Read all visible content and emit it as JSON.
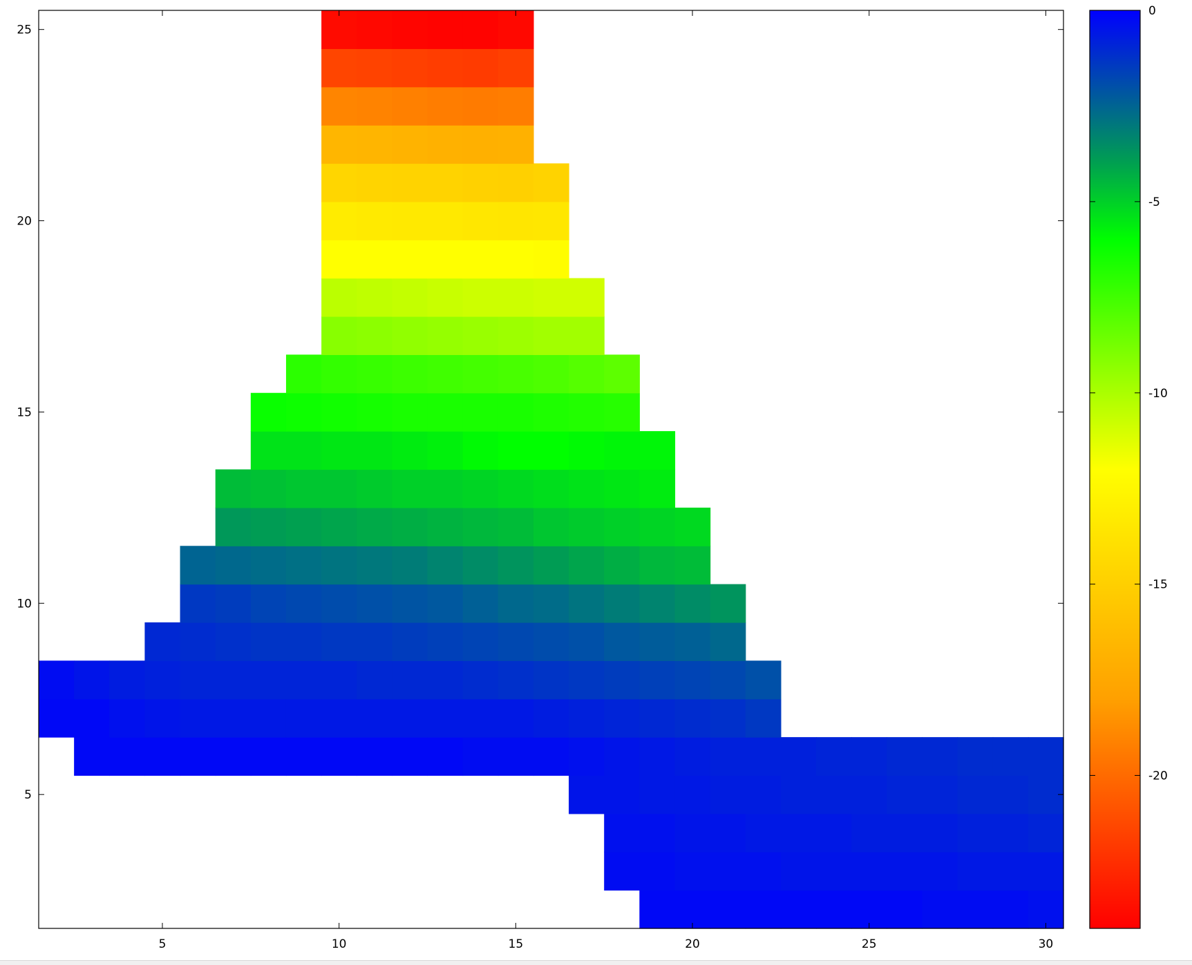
{
  "chart_data": {
    "type": "heatmap",
    "title": "",
    "xlabel": "",
    "ylabel": "",
    "xlim": [
      1.5,
      30.5
    ],
    "ylim": [
      1.5,
      25.5
    ],
    "x_ticks": [
      5,
      10,
      15,
      20,
      25,
      30
    ],
    "y_ticks": [
      5,
      10,
      15,
      20,
      25
    ],
    "colorbar": {
      "range": [
        -24,
        0
      ],
      "ticks": [
        0,
        -5,
        -10,
        -15,
        -20
      ],
      "palette": [
        {
          "value": 0,
          "color": "#0000ff"
        },
        {
          "value": -4,
          "color": "#00a050"
        },
        {
          "value": -6,
          "color": "#00ff00"
        },
        {
          "value": -12,
          "color": "#ffff00"
        },
        {
          "value": -18,
          "color": "#ffa000"
        },
        {
          "value": -24,
          "color": "#ff0000"
        }
      ]
    },
    "rows": [
      {
        "y": 2,
        "x_start": 19,
        "x_end": 30,
        "values": [
          -0.2,
          -0.2,
          -0.2,
          -0.2,
          -0.2,
          -0.2,
          -0.2,
          -0.2,
          -0.3,
          -0.3,
          -0.3,
          -0.4
        ]
      },
      {
        "y": 3,
        "x_start": 18,
        "x_end": 30,
        "values": [
          -0.3,
          -0.3,
          -0.4,
          -0.4,
          -0.4,
          -0.5,
          -0.5,
          -0.5,
          -0.5,
          -0.5,
          -0.6,
          -0.6,
          -0.6
        ]
      },
      {
        "y": 4,
        "x_start": 18,
        "x_end": 30,
        "values": [
          -0.4,
          -0.4,
          -0.5,
          -0.5,
          -0.6,
          -0.6,
          -0.6,
          -0.7,
          -0.7,
          -0.7,
          -0.8,
          -0.8,
          -0.9
        ]
      },
      {
        "y": 5,
        "x_start": 17,
        "x_end": 30,
        "values": [
          -0.5,
          -0.5,
          -0.6,
          -0.6,
          -0.7,
          -0.7,
          -0.8,
          -0.8,
          -0.8,
          -0.9,
          -0.9,
          -1.0,
          -1.0,
          -1.1
        ]
      },
      {
        "y": 6,
        "x_start": 3,
        "x_end": 30,
        "values": [
          -0.2,
          -0.2,
          -0.2,
          -0.2,
          -0.2,
          -0.2,
          -0.2,
          -0.2,
          -0.2,
          -0.2,
          -0.2,
          -0.3,
          -0.3,
          -0.3,
          -0.4,
          -0.5,
          -0.6,
          -0.7,
          -0.8,
          -0.8,
          -0.8,
          -0.9,
          -0.9,
          -1.0,
          -1.0,
          -1.1,
          -1.1,
          -1.1
        ]
      },
      {
        "y": 7,
        "x_start": 2,
        "x_end": 22,
        "values": [
          -0.2,
          -0.2,
          -0.4,
          -0.5,
          -0.6,
          -0.6,
          -0.6,
          -0.6,
          -0.6,
          -0.6,
          -0.6,
          -0.6,
          -0.6,
          -0.6,
          -0.7,
          -0.8,
          -0.9,
          -1.0,
          -1.1,
          -1.2,
          -1.4
        ]
      },
      {
        "y": 8,
        "x_start": 2,
        "x_end": 22,
        "values": [
          -0.3,
          -0.5,
          -0.7,
          -0.8,
          -0.9,
          -0.9,
          -0.9,
          -0.9,
          -0.9,
          -1.0,
          -1.0,
          -1.0,
          -1.1,
          -1.2,
          -1.3,
          -1.4,
          -1.5,
          -1.6,
          -1.7,
          -1.8,
          -2.0
        ]
      },
      {
        "y": 9,
        "x_start": 5,
        "x_end": 21,
        "values": [
          -1.0,
          -1.1,
          -1.2,
          -1.3,
          -1.3,
          -1.4,
          -1.4,
          -1.5,
          -1.6,
          -1.7,
          -1.8,
          -1.9,
          -2.0,
          -2.2,
          -2.3,
          -2.4,
          -2.6
        ]
      },
      {
        "y": 10,
        "x_start": 6,
        "x_end": 21,
        "values": [
          -1.4,
          -1.5,
          -1.7,
          -1.8,
          -1.9,
          -2.0,
          -2.1,
          -2.2,
          -2.4,
          -2.6,
          -2.7,
          -2.9,
          -3.1,
          -3.3,
          -3.5,
          -3.7
        ]
      },
      {
        "y": 11,
        "x_start": 6,
        "x_end": 20,
        "values": [
          -2.5,
          -2.6,
          -2.7,
          -2.8,
          -2.9,
          -3.0,
          -3.1,
          -3.3,
          -3.5,
          -3.7,
          -3.9,
          -4.1,
          -4.3,
          -4.5,
          -4.6
        ]
      },
      {
        "y": 12,
        "x_start": 7,
        "x_end": 20,
        "values": [
          -3.8,
          -3.9,
          -4.0,
          -4.1,
          -4.2,
          -4.3,
          -4.4,
          -4.5,
          -4.6,
          -4.8,
          -4.9,
          -5.0,
          -5.1,
          -5.2
        ]
      },
      {
        "y": 13,
        "x_start": 7,
        "x_end": 19,
        "values": [
          -4.6,
          -4.7,
          -4.8,
          -4.8,
          -4.9,
          -5.0,
          -5.0,
          -5.1,
          -5.2,
          -5.3,
          -5.4,
          -5.5,
          -5.6
        ]
      },
      {
        "y": 14,
        "x_start": 8,
        "x_end": 19,
        "values": [
          -5.4,
          -5.4,
          -5.5,
          -5.5,
          -5.6,
          -5.7,
          -5.9,
          -6.0,
          -6.0,
          -5.9,
          -5.8,
          -5.8
        ]
      },
      {
        "y": 15,
        "x_start": 8,
        "x_end": 18,
        "values": [
          -6.2,
          -6.3,
          -6.4,
          -6.5,
          -6.6,
          -6.6,
          -6.6,
          -6.6,
          -6.7,
          -6.8,
          -6.9
        ]
      },
      {
        "y": 16,
        "x_start": 9,
        "x_end": 18,
        "values": [
          -7.0,
          -7.2,
          -7.3,
          -7.4,
          -7.5,
          -7.6,
          -7.7,
          -7.8,
          -8.0,
          -8.2
        ]
      },
      {
        "y": 17,
        "x_start": 10,
        "x_end": 17,
        "values": [
          -9.2,
          -9.3,
          -9.4,
          -9.5,
          -9.6,
          -9.7,
          -9.8,
          -9.8
        ]
      },
      {
        "y": 18,
        "x_start": 10,
        "x_end": 17,
        "values": [
          -10.4,
          -10.5,
          -10.6,
          -10.7,
          -10.8,
          -10.8,
          -10.9,
          -10.9
        ]
      },
      {
        "y": 19,
        "x_start": 10,
        "x_end": 16,
        "values": [
          -12.0,
          -12.0,
          -12.0,
          -12.0,
          -12.0,
          -12.0,
          -12.1
        ]
      },
      {
        "y": 20,
        "x_start": 10,
        "x_end": 16,
        "values": [
          -13.2,
          -13.3,
          -13.4,
          -13.4,
          -13.5,
          -13.6,
          -13.5
        ]
      },
      {
        "y": 21,
        "x_start": 10,
        "x_end": 16,
        "values": [
          -14.6,
          -14.7,
          -14.8,
          -14.8,
          -14.9,
          -15.0,
          -14.8
        ]
      },
      {
        "y": 22,
        "x_start": 10,
        "x_end": 15,
        "values": [
          -16.6,
          -16.7,
          -16.8,
          -16.9,
          -17.0,
          -16.9
        ]
      },
      {
        "y": 23,
        "x_start": 10,
        "x_end": 15,
        "values": [
          -19.0,
          -19.1,
          -19.2,
          -19.3,
          -19.4,
          -19.3
        ]
      },
      {
        "y": 24,
        "x_start": 10,
        "x_end": 15,
        "values": [
          -21.4,
          -21.5,
          -21.6,
          -21.7,
          -21.8,
          -21.6
        ]
      },
      {
        "y": 25,
        "x_start": 10,
        "x_end": 15,
        "values": [
          -23.6,
          -23.7,
          -23.8,
          -23.9,
          -23.9,
          -23.7
        ]
      }
    ]
  }
}
